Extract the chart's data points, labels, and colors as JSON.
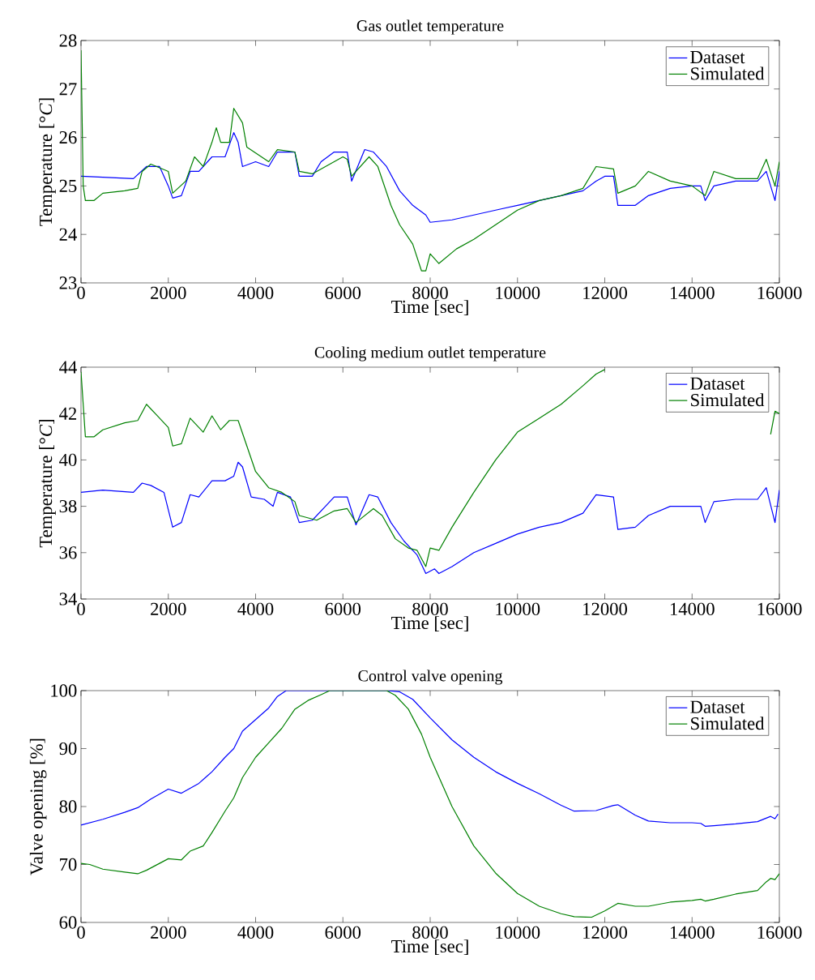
{
  "chart_data": [
    {
      "type": "line",
      "title": "Gas outlet temperature",
      "xlabel": "Time [sec]",
      "ylabel": "Temperature [°*C*]",
      "xlim": [
        0,
        16000
      ],
      "ylim": [
        23,
        28
      ],
      "xticks": [
        0,
        2000,
        4000,
        6000,
        8000,
        10000,
        12000,
        14000,
        16000
      ],
      "yticks": [
        23,
        24,
        25,
        26,
        27,
        28
      ],
      "legend": "top right",
      "marker": "none",
      "series": [
        {
          "name": "Dataset",
          "color": "#0000ff",
          "x": [
            0,
            1200,
            1500,
            1800,
            2000,
            2100,
            2300,
            2500,
            2700,
            2900,
            3000,
            3300,
            3500,
            3600,
            3700,
            4000,
            4300,
            4500,
            4900,
            5000,
            5300,
            5500,
            5800,
            6100,
            6200,
            6500,
            6700,
            7000,
            7300,
            7600,
            7900,
            8000,
            8500,
            9000,
            9500,
            10000,
            10500,
            11000,
            11500,
            11800,
            12000,
            12200,
            12300,
            12700,
            13000,
            13500,
            14000,
            14200,
            14300,
            14500,
            15000,
            15500,
            15700,
            15900,
            16000
          ],
          "values": [
            25.2,
            25.15,
            25.4,
            25.4,
            25.0,
            24.75,
            24.8,
            25.3,
            25.3,
            25.5,
            25.6,
            25.6,
            26.1,
            25.9,
            25.4,
            25.5,
            25.4,
            25.7,
            25.7,
            25.2,
            25.2,
            25.5,
            25.7,
            25.7,
            25.1,
            25.75,
            25.7,
            25.4,
            24.9,
            24.6,
            24.4,
            24.25,
            24.3,
            24.4,
            24.5,
            24.6,
            24.7,
            24.8,
            24.9,
            25.1,
            25.2,
            25.2,
            24.6,
            24.6,
            24.8,
            24.95,
            25.0,
            25.0,
            24.7,
            25.0,
            25.1,
            25.1,
            25.3,
            24.7,
            25.3
          ]
        },
        {
          "name": "Simulated",
          "color": "#008000",
          "x": [
            0,
            50,
            100,
            300,
            500,
            1000,
            1300,
            1400,
            1600,
            2000,
            2100,
            2400,
            2600,
            2800,
            3000,
            3100,
            3200,
            3400,
            3500,
            3700,
            3800,
            4300,
            4500,
            4900,
            5000,
            5300,
            5600,
            6000,
            6100,
            6200,
            6600,
            6800,
            7100,
            7300,
            7600,
            7800,
            7900,
            8000,
            8200,
            8600,
            9000,
            9500,
            10000,
            10500,
            11000,
            11500,
            11800,
            12200,
            12300,
            12700,
            13000,
            13500,
            14000,
            14300,
            14500,
            15000,
            15500,
            15700,
            15900,
            16000
          ],
          "values": [
            27.8,
            25.0,
            24.7,
            24.7,
            24.85,
            24.9,
            24.95,
            25.3,
            25.45,
            25.3,
            24.85,
            25.1,
            25.6,
            25.4,
            25.9,
            26.2,
            25.9,
            25.9,
            26.6,
            26.3,
            25.8,
            25.5,
            25.75,
            25.7,
            25.3,
            25.25,
            25.4,
            25.6,
            25.55,
            25.2,
            25.6,
            25.4,
            24.6,
            24.2,
            23.8,
            23.25,
            23.25,
            23.6,
            23.4,
            23.7,
            23.9,
            24.2,
            24.5,
            24.7,
            24.8,
            24.95,
            25.4,
            25.35,
            24.85,
            25.0,
            25.3,
            25.1,
            25.0,
            24.8,
            25.3,
            25.15,
            25.15,
            25.55,
            25.0,
            25.5
          ]
        }
      ]
    },
    {
      "type": "line",
      "title": "Cooling medium outlet temperature",
      "xlabel": "Time [sec]",
      "ylabel": "Temperature [°*C*]",
      "xlim": [
        0,
        16000
      ],
      "ylim": [
        34,
        44
      ],
      "xticks": [
        0,
        2000,
        4000,
        6000,
        8000,
        10000,
        12000,
        14000,
        16000
      ],
      "yticks": [
        34,
        36,
        38,
        40,
        42,
        44
      ],
      "legend": "top right",
      "marker": "none",
      "series": [
        {
          "name": "Dataset",
          "color": "#0000ff",
          "x": [
            0,
            500,
            1200,
            1400,
            1600,
            1900,
            2100,
            2300,
            2500,
            2700,
            3000,
            3300,
            3500,
            3600,
            3700,
            3900,
            4200,
            4400,
            4500,
            4800,
            5000,
            5300,
            5600,
            5800,
            6100,
            6300,
            6600,
            6800,
            7100,
            7400,
            7700,
            7900,
            8100,
            8200,
            8500,
            9000,
            9500,
            10000,
            10500,
            11000,
            11500,
            11800,
            12200,
            12300,
            12700,
            13000,
            13500,
            14000,
            14200,
            14300,
            14500,
            15000,
            15500,
            15700,
            15900,
            16000
          ],
          "values": [
            38.6,
            38.7,
            38.6,
            39.0,
            38.9,
            38.6,
            37.1,
            37.3,
            38.5,
            38.4,
            39.1,
            39.1,
            39.3,
            39.9,
            39.7,
            38.4,
            38.3,
            38.0,
            38.6,
            38.4,
            37.3,
            37.4,
            38.0,
            38.4,
            38.4,
            37.2,
            38.5,
            38.4,
            37.3,
            36.5,
            35.9,
            35.1,
            35.3,
            35.1,
            35.4,
            36.0,
            36.4,
            36.8,
            37.1,
            37.3,
            37.7,
            38.5,
            38.4,
            37.0,
            37.1,
            37.6,
            38.0,
            38.0,
            38.0,
            37.3,
            38.2,
            38.3,
            38.3,
            38.8,
            37.3,
            38.7
          ]
        },
        {
          "name": "Simulated",
          "color": "#008000",
          "x": [
            0,
            100,
            300,
            500,
            1000,
            1300,
            1500,
            1700,
            2000,
            2100,
            2300,
            2500,
            2800,
            3000,
            3200,
            3400,
            3600,
            4000,
            4300,
            4600,
            4900,
            5000,
            5400,
            5800,
            6100,
            6300,
            6700,
            6900,
            7200,
            7500,
            7700,
            7900,
            8000,
            8200,
            8500,
            9000,
            9500,
            10000,
            10500,
            11000,
            11500,
            11800,
            12000,
            14000,
            15800,
            15900,
            16000
          ],
          "values": [
            43.8,
            41.0,
            41.0,
            41.3,
            41.6,
            41.7,
            42.4,
            42.0,
            41.4,
            40.6,
            40.7,
            41.8,
            41.2,
            41.9,
            41.3,
            41.7,
            41.7,
            39.5,
            38.8,
            38.6,
            38.2,
            37.6,
            37.4,
            37.8,
            37.9,
            37.3,
            37.9,
            37.6,
            36.6,
            36.2,
            36.1,
            35.4,
            36.2,
            36.1,
            37.1,
            38.6,
            40.0,
            41.2,
            41.8,
            42.4,
            43.2,
            43.7,
            43.9,
            null,
            41.1,
            42.1,
            42.0
          ]
        }
      ]
    },
    {
      "type": "line",
      "title": "Control valve opening",
      "xlabel": "Time [sec]",
      "ylabel": "Valve opening [%]",
      "xlim": [
        0,
        16000
      ],
      "ylim": [
        60,
        100
      ],
      "xticks": [
        0,
        2000,
        4000,
        6000,
        8000,
        10000,
        12000,
        14000,
        16000
      ],
      "yticks": [
        60,
        70,
        80,
        90,
        100
      ],
      "legend": "top right",
      "marker": "none",
      "series": [
        {
          "name": "Dataset",
          "color": "#0000ff",
          "x": [
            0,
            500,
            1000,
            1300,
            1600,
            2000,
            2300,
            2700,
            3000,
            3300,
            3500,
            3700,
            4000,
            4300,
            4500,
            4700,
            7000,
            7300,
            7600,
            8000,
            8500,
            9000,
            9500,
            10000,
            10500,
            11000,
            11300,
            11800,
            12200,
            12300,
            12700,
            13000,
            13500,
            14000,
            14200,
            14300,
            14500,
            15000,
            15500,
            15800,
            15900,
            15970
          ],
          "values": [
            76.8,
            77.8,
            79.0,
            79.8,
            81.3,
            83.0,
            82.3,
            84.0,
            86.0,
            88.5,
            90.0,
            93.0,
            95.0,
            97.0,
            99.0,
            100,
            100,
            99.8,
            98.5,
            95.3,
            91.5,
            88.5,
            86.0,
            84.0,
            82.2,
            80.2,
            79.2,
            79.3,
            80.2,
            80.3,
            78.5,
            77.5,
            77.2,
            77.2,
            77.1,
            76.6,
            76.7,
            77.0,
            77.4,
            78.3,
            77.9,
            78.7
          ]
        },
        {
          "name": "Simulated",
          "color": "#008000",
          "x": [
            0,
            200,
            500,
            1000,
            1300,
            1500,
            2000,
            2300,
            2500,
            2800,
            3000,
            3300,
            3500,
            3700,
            4000,
            4300,
            4600,
            4900,
            5200,
            5500,
            5700,
            7000,
            7200,
            7500,
            7800,
            8000,
            8500,
            9000,
            9500,
            10000,
            10500,
            11000,
            11300,
            11700,
            12000,
            12300,
            12700,
            13000,
            13500,
            14000,
            14200,
            14300,
            14500,
            15000,
            15500,
            15700,
            15800,
            15900,
            16000
          ],
          "values": [
            70.2,
            70.0,
            69.2,
            68.7,
            68.4,
            69.0,
            71.0,
            70.8,
            72.3,
            73.2,
            75.5,
            79.2,
            81.5,
            85.0,
            88.5,
            91.0,
            93.5,
            96.8,
            98.3,
            99.3,
            100,
            100,
            99.2,
            96.8,
            92.5,
            88.5,
            80.0,
            73.2,
            68.5,
            65.0,
            62.8,
            61.5,
            61.0,
            60.9,
            62.0,
            63.3,
            62.8,
            62.8,
            63.5,
            63.8,
            64.0,
            63.7,
            64.0,
            64.9,
            65.5,
            67.0,
            67.6,
            67.4,
            68.4
          ]
        }
      ]
    }
  ]
}
